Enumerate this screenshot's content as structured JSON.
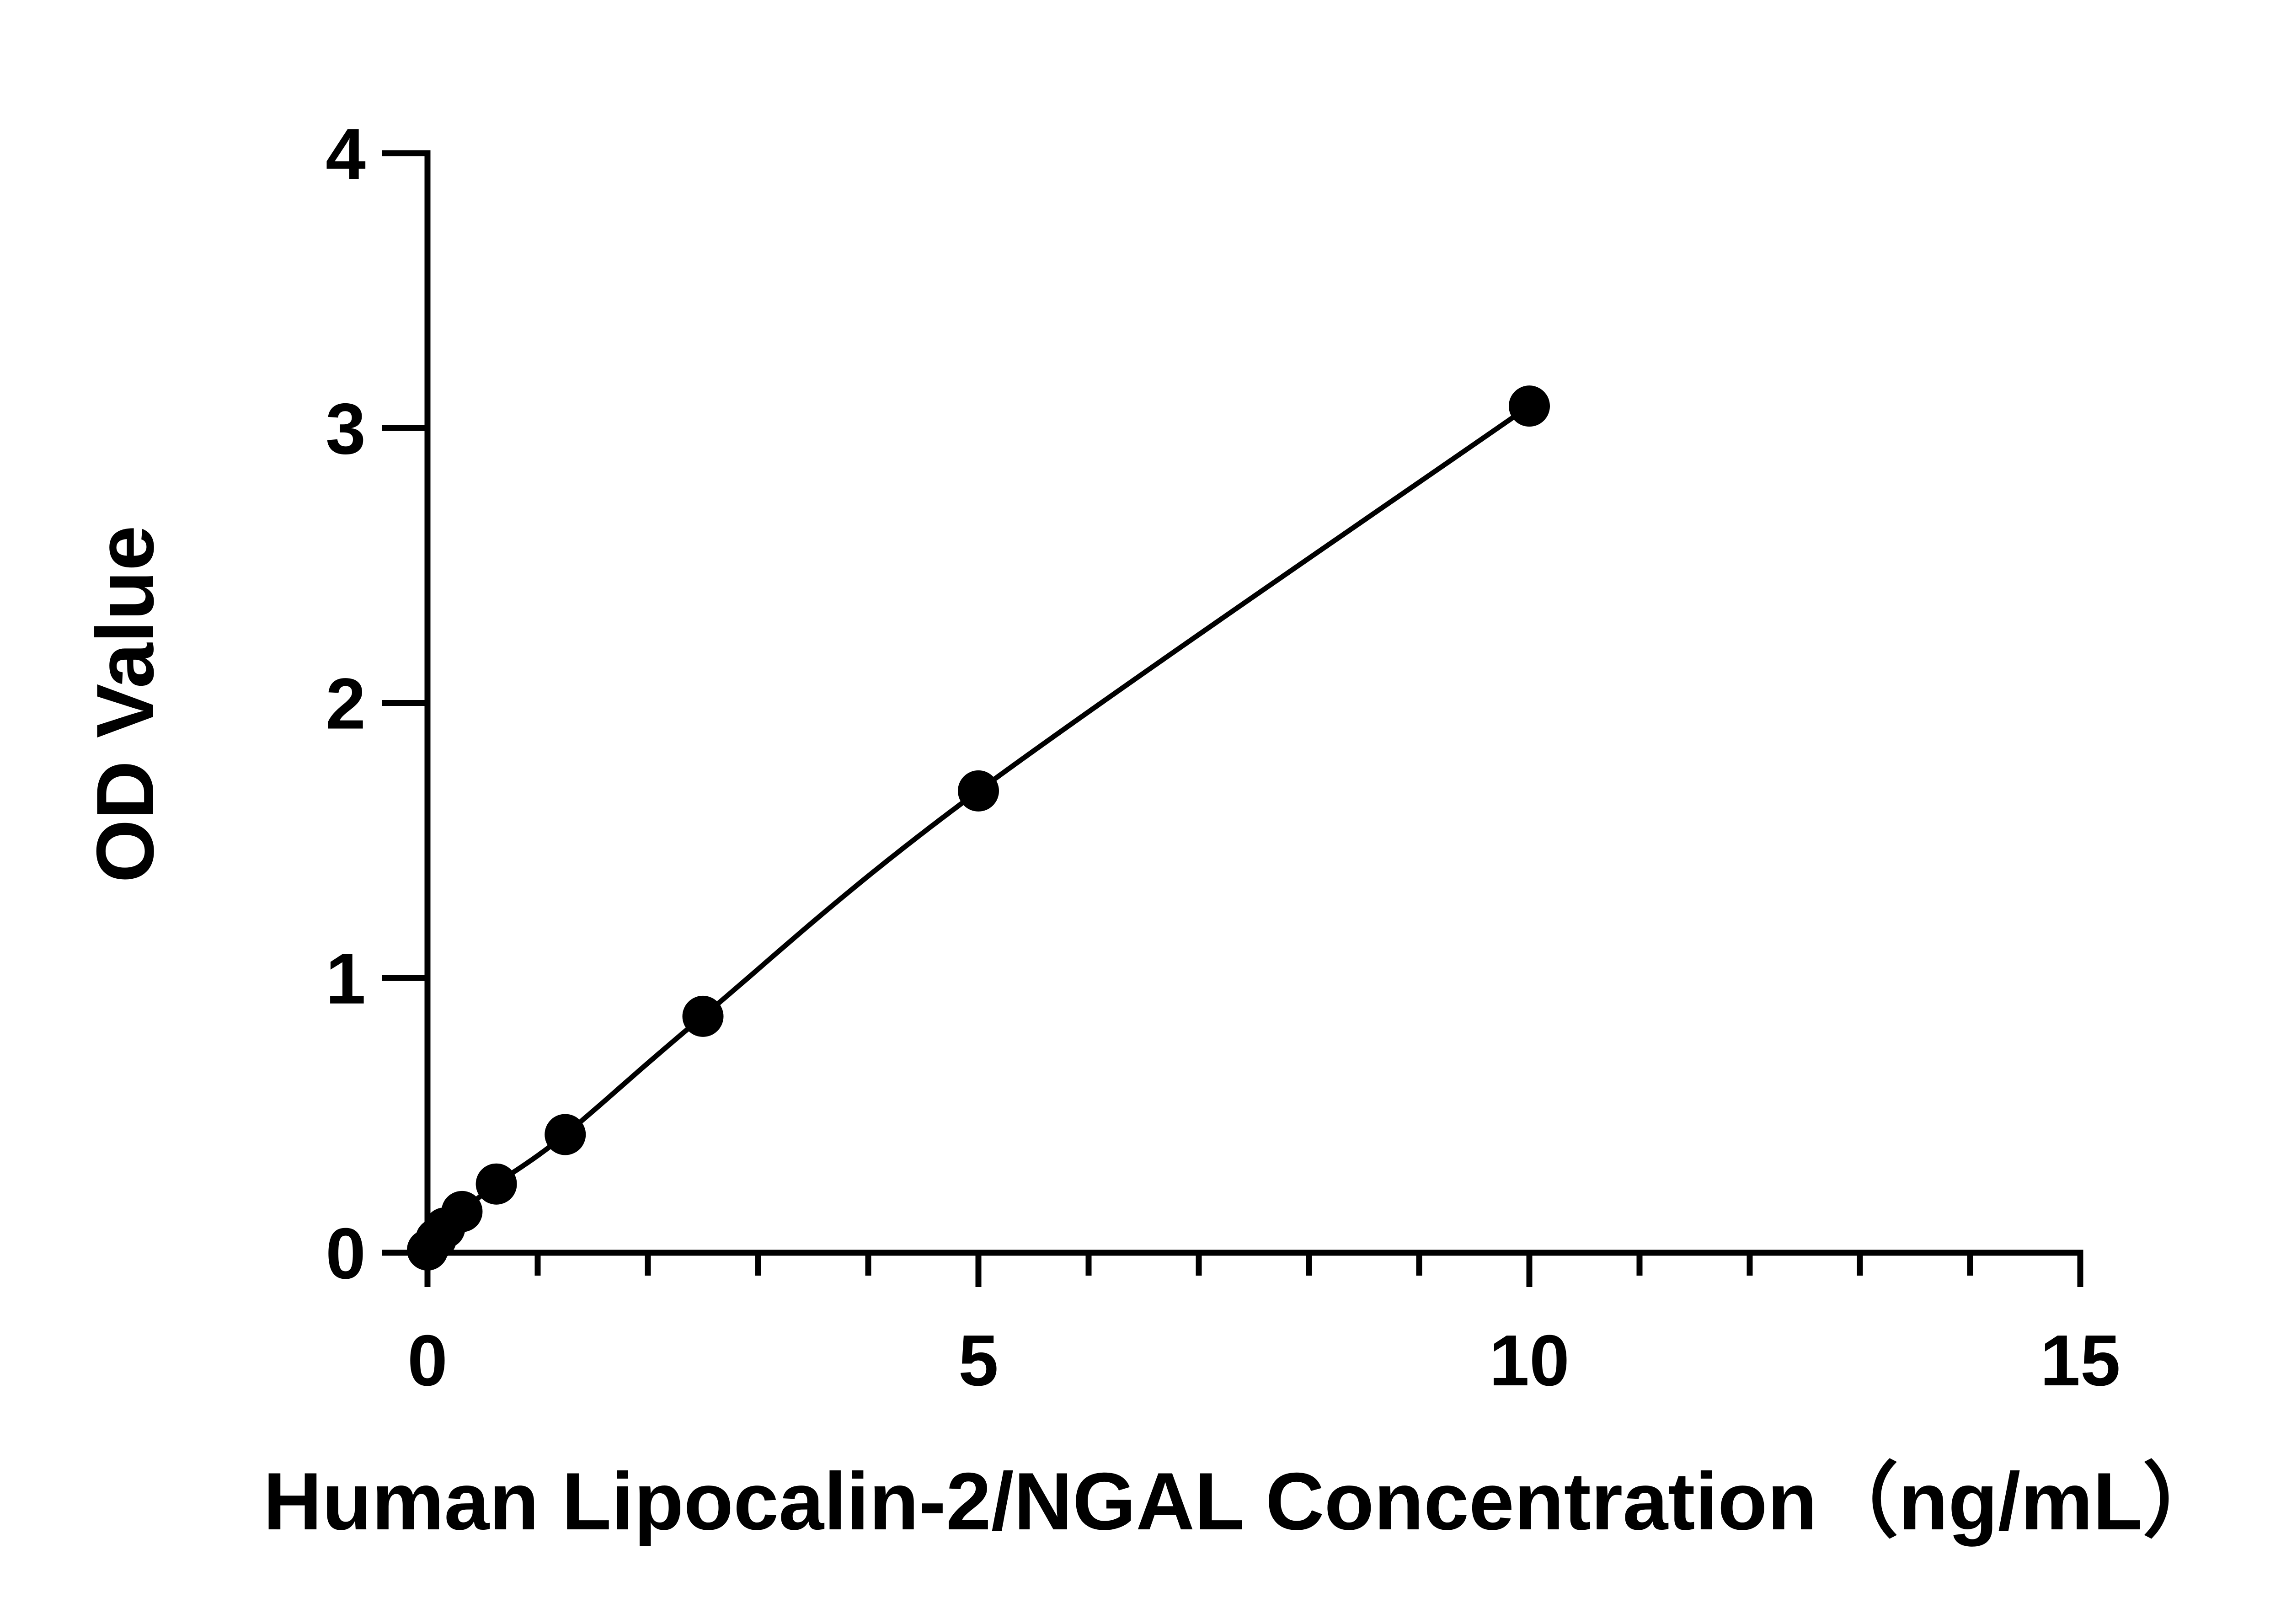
{
  "chart_data": {
    "type": "scatter",
    "title": "",
    "xlabel": "Human Lipocalin-2/NGAL Concentration（ng/mL）",
    "ylabel": "OD Value",
    "xlim": [
      0,
      15
    ],
    "ylim": [
      0,
      4
    ],
    "x_ticks": [
      0,
      5,
      10,
      15
    ],
    "x_minor_step": 1,
    "y_ticks": [
      0,
      1,
      2,
      3,
      4
    ],
    "grid": false,
    "legend": "none",
    "series": [
      {
        "x": [
          0,
          0.078,
          0.156,
          0.313,
          0.625,
          1.25,
          2.5,
          5,
          10
        ],
        "y": [
          0.01,
          0.05,
          0.09,
          0.15,
          0.25,
          0.43,
          0.86,
          1.68,
          3.08
        ],
        "marker": "filled-circle",
        "fit": "smooth-curve",
        "color": "#000000"
      }
    ]
  }
}
